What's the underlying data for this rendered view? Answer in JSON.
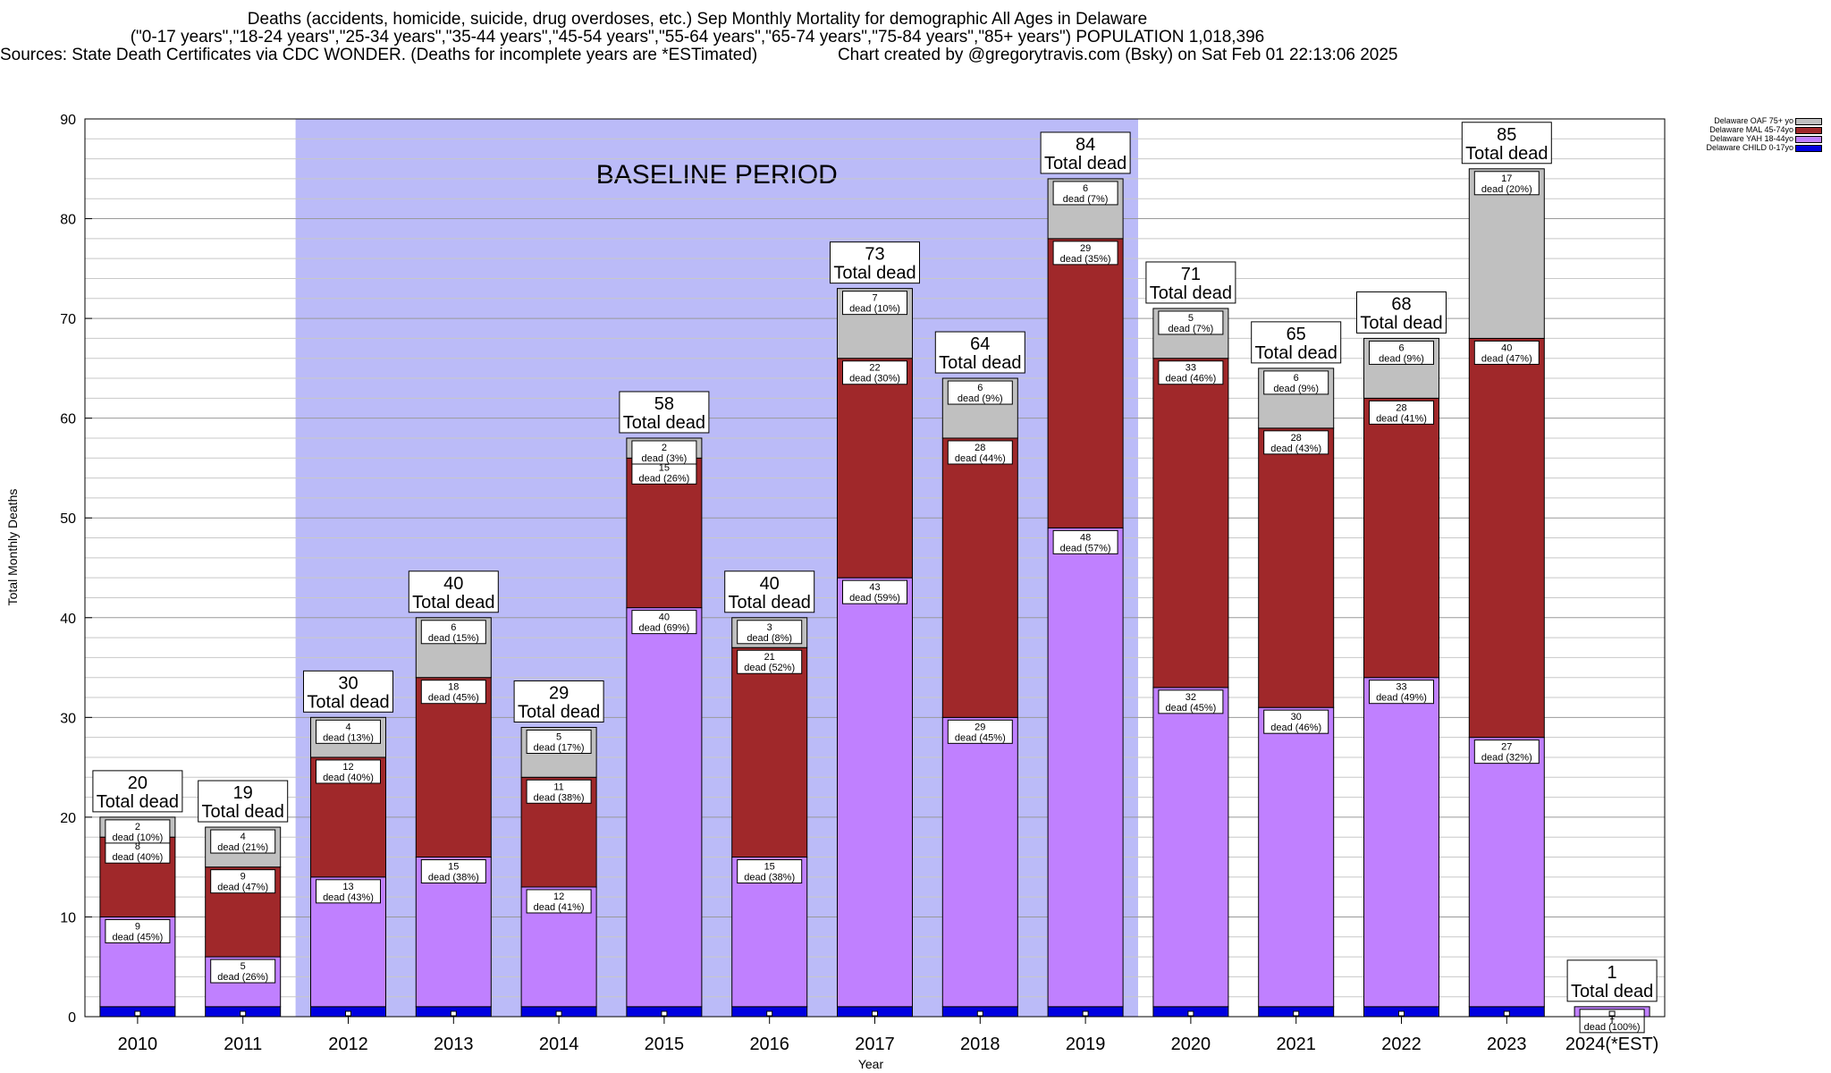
{
  "header": {
    "line1": "Deaths (accidents, homicide, suicide, drug overdoses, etc.) Sep Monthly Mortality for demographic All Ages in Delaware",
    "line2": "(\"0-17 years\",\"18-24 years\",\"25-34 years\",\"35-44 years\",\"45-54 years\",\"55-64 years\",\"65-74 years\",\"75-84 years\",\"85+ years\") POPULATION 1,018,396",
    "line3_left": "Sources: State Death Certificates via CDC WONDER. (Deaths for incomplete years are *ESTimated)",
    "line3_right": "Chart created by @gregorytravis.com (Bsky) on Sat Feb 01 22:13:06 2025"
  },
  "legend": [
    {
      "label": "Delaware OAF 75+ yo",
      "color": "#c0c0c0"
    },
    {
      "label": "Delaware MAL 45-74yo",
      "color": "#a0282a"
    },
    {
      "label": "Delaware YAH 18-44yo",
      "color": "#c080ff"
    },
    {
      "label": "Delaware CHILD 0-17yo",
      "color": "#0000e0"
    }
  ],
  "chart_data": {
    "type": "bar",
    "stacked": true,
    "title": "Deaths (accidents, homicide, suicide, drug overdoses, etc.) Sep Monthly Mortality for demographic All Ages in Delaware",
    "xlabel": "Year",
    "ylabel": "Total Monthly Deaths",
    "ylim": [
      0,
      90
    ],
    "yticks": [
      0,
      10,
      20,
      30,
      40,
      50,
      60,
      70,
      80,
      90
    ],
    "grid": true,
    "legend_position": "top-right",
    "baseline": {
      "label": "BASELINE PERIOD",
      "start": "2012",
      "end": "2019",
      "color": "#bbbbf8"
    },
    "categories": [
      "2010",
      "2011",
      "2012",
      "2013",
      "2014",
      "2015",
      "2016",
      "2017",
      "2018",
      "2019",
      "2020",
      "2021",
      "2022",
      "2023",
      "2024(*EST)"
    ],
    "series": [
      {
        "name": "Delaware CHILD 0-17yo",
        "color": "#0000e0",
        "values": [
          1,
          1,
          1,
          1,
          1,
          1,
          1,
          1,
          1,
          1,
          1,
          1,
          1,
          1,
          0
        ]
      },
      {
        "name": "Delaware YAH 18-44yo",
        "color": "#c080ff",
        "values": [
          9,
          5,
          13,
          15,
          12,
          40,
          15,
          43,
          29,
          48,
          32,
          30,
          33,
          27,
          1
        ]
      },
      {
        "name": "Delaware MAL 45-74yo",
        "color": "#a0282a",
        "values": [
          8,
          9,
          12,
          18,
          11,
          15,
          21,
          22,
          28,
          29,
          33,
          28,
          28,
          40,
          0
        ]
      },
      {
        "name": "Delaware OAF 75+ yo",
        "color": "#c0c0c0",
        "values": [
          2,
          4,
          4,
          6,
          5,
          2,
          3,
          7,
          6,
          6,
          5,
          6,
          6,
          17,
          0
        ]
      }
    ],
    "totals": [
      20,
      19,
      30,
      40,
      29,
      58,
      40,
      73,
      64,
      84,
      71,
      65,
      68,
      85,
      1
    ],
    "total_label": "Total dead",
    "segment_labels": {
      "word": "dead",
      "series": {
        "Delaware YAH 18-44yo": [
          "(45%)",
          "(26%)",
          "(43%)",
          "(38%)",
          "(41%)",
          "(69%)",
          "(38%)",
          "(59%)",
          "(45%)",
          "(57%)",
          "(45%)",
          "(46%)",
          "(49%)",
          "(32%)",
          "(100%)"
        ],
        "Delaware MAL 45-74yo": [
          "(40%)",
          "(47%)",
          "(40%)",
          "(45%)",
          "(38%)",
          "(26%)",
          "(52%)",
          "(30%)",
          "(44%)",
          "(35%)",
          "(46%)",
          "(43%)",
          "(41%)",
          "(47%)",
          null
        ],
        "Delaware OAF 75+ yo": [
          "(10%)",
          "(21%)",
          "(13%)",
          "(15%)",
          "(17%)",
          "(3%)",
          "(8%)",
          "(10%)",
          "(9%)",
          "(7%)",
          "(7%)",
          "(9%)",
          "(9%)",
          "(20%)",
          null
        ]
      }
    }
  }
}
